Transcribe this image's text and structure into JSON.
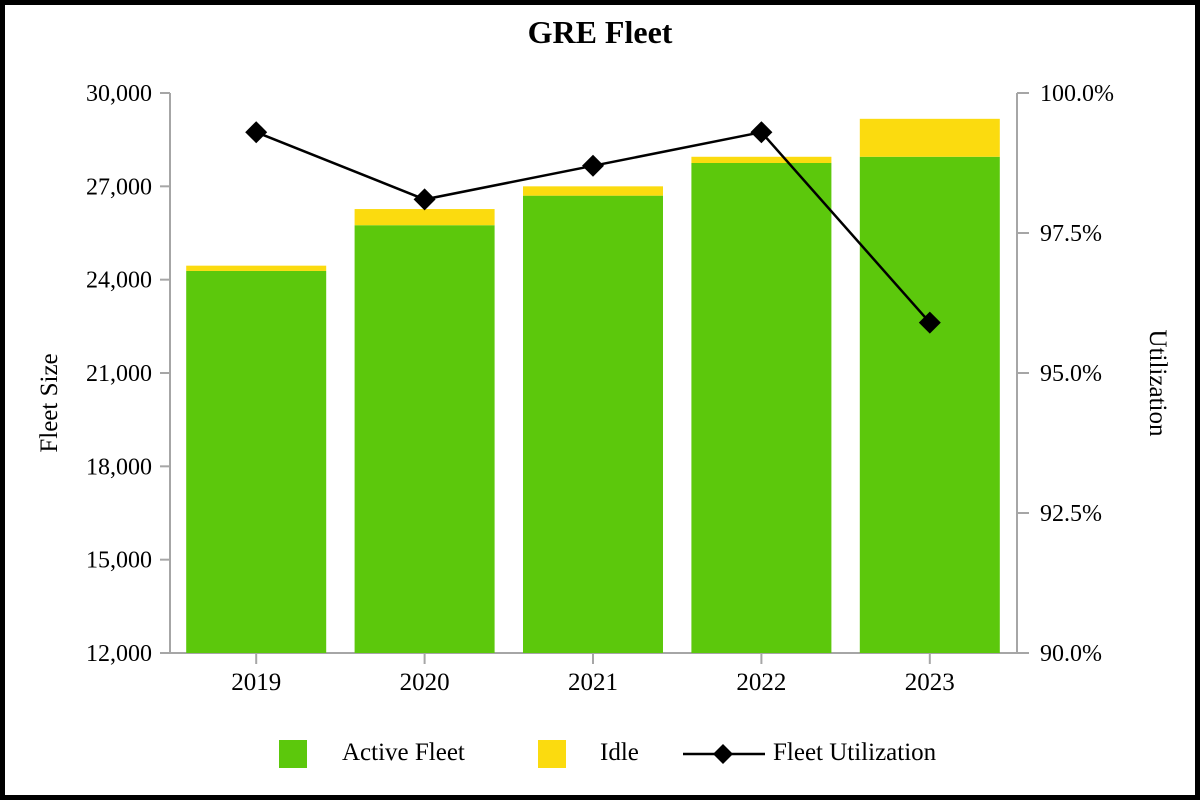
{
  "title": "GRE Fleet",
  "chart_data": {
    "type": "combo-bar-line",
    "title": "GRE Fleet",
    "categories": [
      "2019",
      "2020",
      "2021",
      "2022",
      "2023"
    ],
    "series": [
      {
        "name": "Active Fleet",
        "chart": "bar",
        "stack": "fleet",
        "axis": "left",
        "values": [
          24280,
          25750,
          26700,
          27750,
          27950
        ]
      },
      {
        "name": "Idle",
        "chart": "bar",
        "stack": "fleet",
        "axis": "left",
        "values": [
          170,
          520,
          300,
          200,
          1220
        ]
      },
      {
        "name": "Fleet Utilization",
        "chart": "line",
        "axis": "right",
        "marker": "diamond",
        "values": [
          99.3,
          98.1,
          98.7,
          99.3,
          95.9
        ]
      }
    ],
    "left_axis": {
      "title": "Fleet Size",
      "min": 12000,
      "max": 30000,
      "ticks": [
        12000,
        15000,
        18000,
        21000,
        24000,
        27000,
        30000
      ],
      "tick_labels": [
        "12,000",
        "15,000",
        "18,000",
        "21,000",
        "24,000",
        "27,000",
        "30,000"
      ]
    },
    "right_axis": {
      "title": "Utilization",
      "min": 90,
      "max": 100,
      "ticks": [
        90,
        92.5,
        95,
        97.5,
        100
      ],
      "tick_labels": [
        "90.0%",
        "92.5%",
        "95.0%",
        "97.5%",
        "100.0%"
      ]
    },
    "grid": false,
    "legend_position": "bottom"
  },
  "legend": {
    "items": [
      {
        "label": "Active Fleet",
        "swatch": "active_fleet"
      },
      {
        "label": "Idle",
        "swatch": "idle"
      },
      {
        "label": "Fleet Utilization",
        "swatch": "line_diamond"
      }
    ]
  },
  "colors": {
    "active_fleet": "#5cc80c",
    "idle": "#fbdb0f",
    "line": "#000000",
    "axis": "#a6a6a6",
    "text": "#000000",
    "frame": "#000000",
    "background": "#ffffff"
  }
}
